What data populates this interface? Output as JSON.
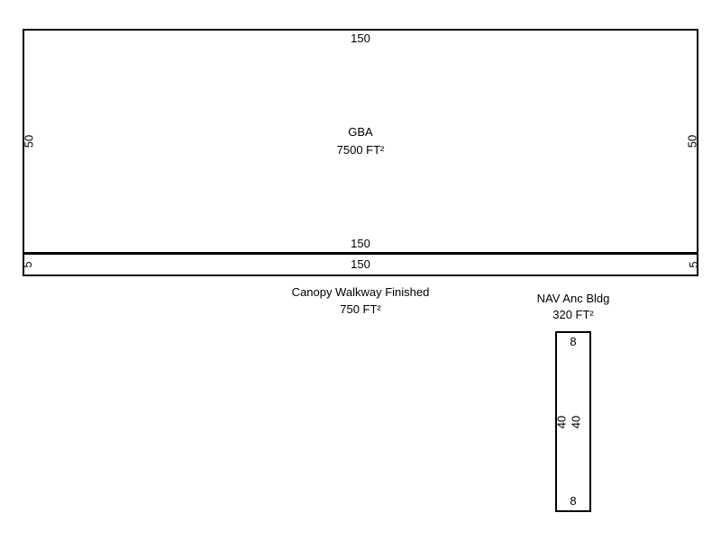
{
  "colors": {
    "background": "#ffffff",
    "line": "#000000",
    "text": "#000000"
  },
  "gba": {
    "name": "GBA",
    "area": "7500 FT²",
    "dim_top": "150",
    "dim_bottom": "150",
    "dim_left": "50",
    "dim_right": "50"
  },
  "canopy": {
    "caption_title": "Canopy Walkway Finished",
    "caption_area": "750 FT²",
    "dim_left": "5",
    "dim_center": "150",
    "dim_right": "5"
  },
  "nav": {
    "caption_title": "NAV Anc Bldg",
    "caption_area": "320 FT²",
    "dim_top": "8",
    "dim_bottom": "8",
    "dim_mid_left": "40",
    "dim_mid_right": "40"
  }
}
